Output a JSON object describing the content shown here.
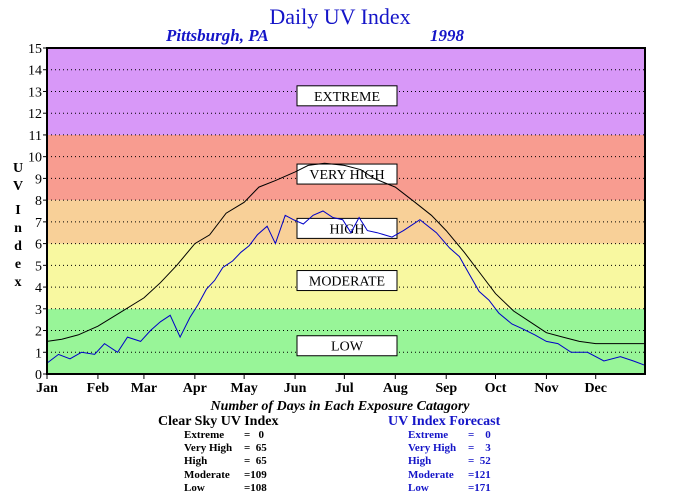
{
  "header": {
    "title": "Daily UV Index",
    "location": "Pittsburgh, PA",
    "year": "1998"
  },
  "ylabel_letters": [
    "U",
    "V",
    "I",
    "n",
    "d",
    "e",
    "x"
  ],
  "chart_data": {
    "type": "line",
    "title": "Daily UV Index",
    "subtitle": "Pittsburgh, PA 1998",
    "ylabel": "UV Index",
    "ylim": [
      0,
      15
    ],
    "yticks": [
      0,
      1,
      2,
      3,
      4,
      5,
      6,
      7,
      8,
      9,
      10,
      11,
      12,
      13,
      14,
      15
    ],
    "x_domain": [
      1,
      365
    ],
    "month_ticks": [
      {
        "label": "Jan",
        "day": 1
      },
      {
        "label": "Feb",
        "day": 32
      },
      {
        "label": "Mar",
        "day": 60
      },
      {
        "label": "Apr",
        "day": 91
      },
      {
        "label": "May",
        "day": 121
      },
      {
        "label": "Jun",
        "day": 152
      },
      {
        "label": "Jul",
        "day": 182
      },
      {
        "label": "Aug",
        "day": 213
      },
      {
        "label": "Sep",
        "day": 244
      },
      {
        "label": "Oct",
        "day": 274
      },
      {
        "label": "Nov",
        "day": 305
      },
      {
        "label": "Dec",
        "day": 335
      }
    ],
    "grid": true,
    "bands": [
      {
        "name": "LOW",
        "from": 0,
        "to": 3,
        "color": "#98f598"
      },
      {
        "name": "MODERATE",
        "from": 3,
        "to": 6,
        "color": "#f8f8a0"
      },
      {
        "name": "HIGH",
        "from": 6,
        "to": 8,
        "color": "#f8d098"
      },
      {
        "name": "VERY HIGH",
        "from": 8,
        "to": 11,
        "color": "#f89c90"
      },
      {
        "name": "EXTREME",
        "from": 11,
        "to": 15,
        "color": "#d898f8"
      }
    ],
    "band_label_positions": [
      {
        "name": "EXTREME",
        "y": 12.8
      },
      {
        "name": "VERY HIGH",
        "y": 9.2
      },
      {
        "name": "HIGH",
        "y": 6.7
      },
      {
        "name": "MODERATE",
        "y": 4.3
      },
      {
        "name": "LOW",
        "y": 1.3
      }
    ],
    "series": [
      {
        "name": "Clear Sky UV Index",
        "color": "#000000",
        "points": [
          [
            1,
            1.5
          ],
          [
            10,
            1.6
          ],
          [
            20,
            1.8
          ],
          [
            32,
            2.2
          ],
          [
            45,
            2.8
          ],
          [
            60,
            3.5
          ],
          [
            70,
            4.2
          ],
          [
            80,
            5.0
          ],
          [
            91,
            6.0
          ],
          [
            100,
            6.4
          ],
          [
            110,
            7.4
          ],
          [
            121,
            7.9
          ],
          [
            130,
            8.6
          ],
          [
            140,
            8.9
          ],
          [
            152,
            9.3
          ],
          [
            160,
            9.6
          ],
          [
            170,
            9.7
          ],
          [
            182,
            9.6
          ],
          [
            192,
            9.4
          ],
          [
            200,
            9.0
          ],
          [
            213,
            8.6
          ],
          [
            225,
            7.9
          ],
          [
            235,
            7.3
          ],
          [
            244,
            6.6
          ],
          [
            255,
            5.6
          ],
          [
            265,
            4.6
          ],
          [
            274,
            3.7
          ],
          [
            285,
            2.9
          ],
          [
            295,
            2.4
          ],
          [
            305,
            1.9
          ],
          [
            315,
            1.7
          ],
          [
            325,
            1.5
          ],
          [
            335,
            1.4
          ],
          [
            345,
            1.4
          ],
          [
            355,
            1.4
          ],
          [
            365,
            1.4
          ]
        ],
        "gaps": [
          [
            216,
            224
          ]
        ]
      },
      {
        "name": "UV Index Forecast",
        "color": "#0000c8",
        "points": [
          [
            1,
            0.5
          ],
          [
            8,
            0.9
          ],
          [
            15,
            0.7
          ],
          [
            22,
            1.0
          ],
          [
            30,
            0.9
          ],
          [
            36,
            1.4
          ],
          [
            44,
            1.0
          ],
          [
            50,
            1.7
          ],
          [
            58,
            1.5
          ],
          [
            64,
            2.0
          ],
          [
            70,
            2.4
          ],
          [
            76,
            2.7
          ],
          [
            82,
            1.7
          ],
          [
            88,
            2.6
          ],
          [
            93,
            3.2
          ],
          [
            98,
            3.9
          ],
          [
            103,
            4.3
          ],
          [
            108,
            4.9
          ],
          [
            114,
            5.2
          ],
          [
            119,
            5.6
          ],
          [
            124,
            5.9
          ],
          [
            129,
            6.4
          ],
          [
            135,
            6.8
          ],
          [
            140,
            6.0
          ],
          [
            146,
            7.3
          ],
          [
            151,
            7.1
          ],
          [
            157,
            6.9
          ],
          [
            163,
            7.3
          ],
          [
            169,
            7.5
          ],
          [
            175,
            7.2
          ],
          [
            181,
            7.1
          ],
          [
            186,
            6.5
          ],
          [
            191,
            7.2
          ],
          [
            196,
            6.6
          ],
          [
            202,
            6.5
          ],
          [
            211,
            6.3
          ],
          [
            218,
            6.6
          ],
          [
            228,
            7.1
          ],
          [
            238,
            6.5
          ],
          [
            246,
            5.8
          ],
          [
            252,
            5.4
          ],
          [
            258,
            4.6
          ],
          [
            264,
            3.8
          ],
          [
            270,
            3.4
          ],
          [
            276,
            2.8
          ],
          [
            284,
            2.3
          ],
          [
            290,
            2.1
          ],
          [
            298,
            1.8
          ],
          [
            305,
            1.5
          ],
          [
            312,
            1.4
          ],
          [
            320,
            1.0
          ],
          [
            330,
            1.0
          ],
          [
            340,
            0.6
          ],
          [
            350,
            0.8
          ],
          [
            358,
            0.6
          ],
          [
            365,
            0.4
          ]
        ],
        "gaps": [
          [
            203,
            210
          ]
        ]
      }
    ],
    "counts_title": "Number of Days in Each Exposure Catagory",
    "clear_sky_counts": {
      "name": "Clear Sky UV Index",
      "rows": [
        {
          "label": "Extreme",
          "value": "=   0"
        },
        {
          "label": "Very High",
          "value": "=  65"
        },
        {
          "label": "High",
          "value": "=  65"
        },
        {
          "label": "Moderate",
          "value": "=109"
        },
        {
          "label": "Low",
          "value": "=108"
        }
      ]
    },
    "forecast_counts": {
      "name": "UV Index Forecast",
      "rows": [
        {
          "label": "Extreme",
          "value": "=    0"
        },
        {
          "label": "Very High",
          "value": "=    3"
        },
        {
          "label": "High",
          "value": "=  52"
        },
        {
          "label": "Moderate",
          "value": "=121"
        },
        {
          "label": "Low",
          "value": "=171"
        }
      ]
    }
  }
}
